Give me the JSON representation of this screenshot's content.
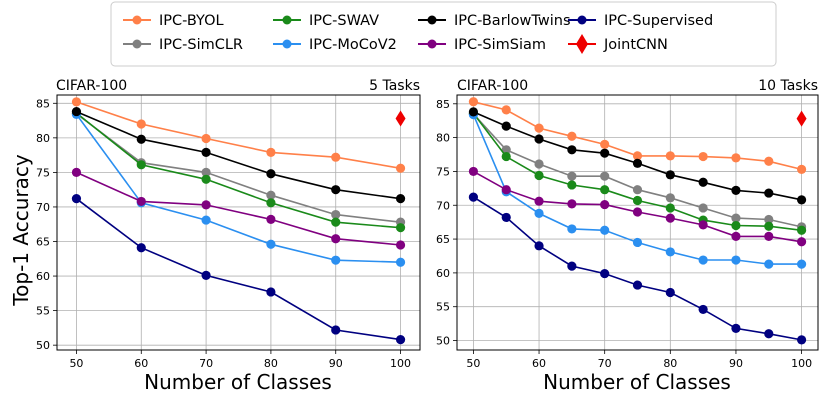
{
  "shared": {
    "ylabel": "Top-1 Accuracy"
  },
  "legend": {
    "placement": "top-center",
    "entries": [
      {
        "name": "IPC-BYOL",
        "color": "#ff8049",
        "marker": "circle"
      },
      {
        "name": "IPC-SimCLR",
        "color": "#808080",
        "marker": "circle"
      },
      {
        "name": "IPC-SWAV",
        "color": "#1a8a1a",
        "marker": "circle"
      },
      {
        "name": "IPC-MoCoV2",
        "color": "#2b8ff0",
        "marker": "circle"
      },
      {
        "name": "IPC-BarlowTwins",
        "color": "#000000",
        "marker": "circle"
      },
      {
        "name": "IPC-SimSiam",
        "color": "#800080",
        "marker": "circle"
      },
      {
        "name": "IPC-Supervised",
        "color": "#000080",
        "marker": "circle"
      },
      {
        "name": "JointCNN",
        "color": "#ee0000",
        "marker": "diamond"
      }
    ]
  },
  "chart_data": [
    {
      "type": "line",
      "title_left": "CIFAR-100",
      "title_right": "5 Tasks",
      "xlabel": "Number of Classes",
      "ylabel": "Top-1 Accuracy",
      "grid": true,
      "xlim": [
        47,
        103
      ],
      "ylim": [
        49.3,
        86.2
      ],
      "xticks": [
        50,
        60,
        70,
        80,
        90,
        100
      ],
      "yticks": [
        50,
        55,
        60,
        65,
        70,
        75,
        80,
        85
      ],
      "x": [
        50,
        60,
        70,
        80,
        90,
        100
      ],
      "series": [
        {
          "name": "IPC-BYOL",
          "values": [
            85.2,
            82.0,
            79.9,
            77.9,
            77.2,
            75.6
          ]
        },
        {
          "name": "IPC-SimCLR",
          "values": [
            83.5,
            76.4,
            75.0,
            71.7,
            68.9,
            67.8
          ]
        },
        {
          "name": "IPC-SWAV",
          "values": [
            83.6,
            76.1,
            74.0,
            70.6,
            67.8,
            67.0
          ]
        },
        {
          "name": "IPC-MoCoV2",
          "values": [
            83.4,
            70.6,
            68.1,
            64.6,
            62.3,
            62.0
          ]
        },
        {
          "name": "IPC-BarlowTwins",
          "values": [
            83.8,
            79.8,
            77.9,
            74.8,
            72.5,
            71.2
          ]
        },
        {
          "name": "IPC-SimSiam",
          "values": [
            75.0,
            70.8,
            70.3,
            68.2,
            65.4,
            64.5
          ]
        },
        {
          "name": "IPC-Supervised",
          "values": [
            71.2,
            64.1,
            60.1,
            57.7,
            52.2,
            50.8
          ]
        }
      ],
      "points": [
        {
          "name": "JointCNN",
          "x": 100,
          "y": 82.8
        }
      ]
    },
    {
      "type": "line",
      "title_left": "CIFAR-100",
      "title_right": "10 Tasks",
      "xlabel": "Number of Classes",
      "ylabel": "",
      "grid": true,
      "xlim": [
        47.5,
        102.5
      ],
      "ylim": [
        48.6,
        86.3
      ],
      "xticks": [
        50,
        60,
        70,
        80,
        90,
        100
      ],
      "yticks": [
        50,
        55,
        60,
        65,
        70,
        75,
        80,
        85
      ],
      "x": [
        50,
        55,
        60,
        65,
        70,
        75,
        80,
        85,
        90,
        95,
        100
      ],
      "series": [
        {
          "name": "IPC-BYOL",
          "values": [
            85.3,
            84.1,
            81.4,
            80.2,
            79.0,
            77.3,
            77.3,
            77.2,
            77.0,
            76.5,
            75.3
          ]
        },
        {
          "name": "IPC-SimCLR",
          "values": [
            83.5,
            78.2,
            76.1,
            74.3,
            74.3,
            72.3,
            71.1,
            69.6,
            68.1,
            67.9,
            66.8
          ]
        },
        {
          "name": "IPC-SWAV",
          "values": [
            83.6,
            77.2,
            74.4,
            73.0,
            72.3,
            70.7,
            69.6,
            67.8,
            67.0,
            66.9,
            66.3
          ]
        },
        {
          "name": "IPC-MoCoV2",
          "values": [
            83.4,
            72.0,
            68.8,
            66.5,
            66.3,
            64.5,
            63.1,
            61.9,
            61.9,
            61.3,
            61.3
          ]
        },
        {
          "name": "IPC-BarlowTwins",
          "values": [
            83.8,
            81.7,
            79.8,
            78.2,
            77.7,
            76.2,
            74.5,
            73.4,
            72.2,
            71.8,
            70.8
          ]
        },
        {
          "name": "IPC-SimSiam",
          "values": [
            75.0,
            72.3,
            70.6,
            70.2,
            70.1,
            69.0,
            68.1,
            67.1,
            65.4,
            65.4,
            64.6
          ]
        },
        {
          "name": "IPC-Supervised",
          "values": [
            71.2,
            68.2,
            64.0,
            61.0,
            59.9,
            58.2,
            57.1,
            54.6,
            51.8,
            51.0,
            50.1
          ]
        }
      ],
      "points": [
        {
          "name": "JointCNN",
          "x": 100,
          "y": 82.8
        }
      ]
    }
  ]
}
